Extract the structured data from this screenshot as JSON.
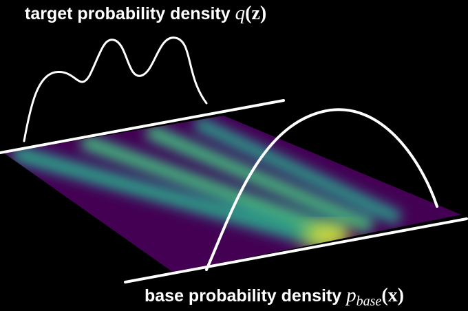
{
  "labels": {
    "target": {
      "text": "target probability density",
      "symbol": "q",
      "argument": "(z)"
    },
    "base": {
      "text": "base probability density",
      "symbol": "p",
      "subscript": "base",
      "argument": "(x)"
    }
  }
}
